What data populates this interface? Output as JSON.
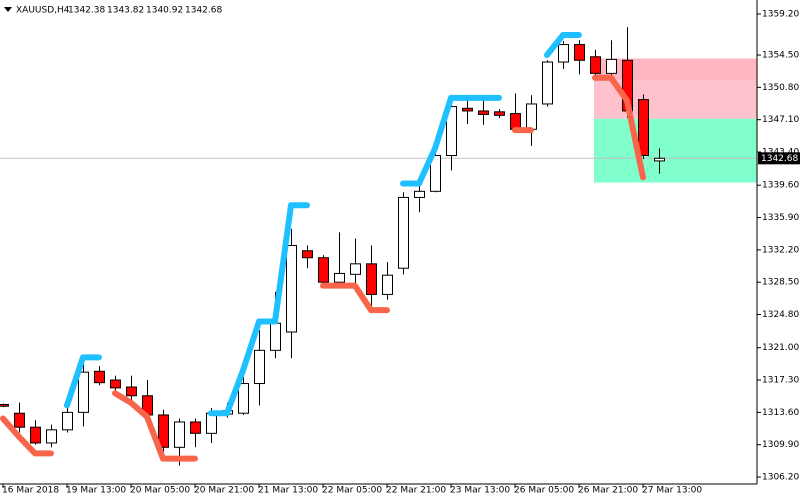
{
  "chart_data": {
    "type": "candlestick",
    "symbol": "XAUUSD,H4",
    "categories": [
      "16 Mar 2018",
      null,
      null,
      null,
      "19 Mar 13:00",
      null,
      null,
      null,
      "20 Mar 05:00",
      null,
      null,
      null,
      "20 Mar 21:00",
      null,
      null,
      null,
      "21 Mar 13:00",
      null,
      null,
      null,
      "22 Mar 05:00",
      null,
      null,
      null,
      "22 Mar 21:00",
      null,
      null,
      null,
      "23 Mar 13:00",
      null,
      null,
      null,
      "26 Mar 05:00",
      null,
      null,
      null,
      "26 Mar 21:00",
      null,
      null,
      null,
      "27 Mar 13:00",
      null
    ],
    "open": [
      1314.5,
      1313.5,
      1311.9,
      1310.1,
      1311.6,
      1313.6,
      1318.3,
      1317.3,
      1316.5,
      1315.5,
      1313.3,
      1309.6,
      1312.5,
      1311.2,
      1313.4,
      1313.5,
      1316.9,
      1320.7,
      1322.8,
      1332.1,
      1331.3,
      1328.5,
      1329.4,
      1330.6,
      1327.1,
      1330.1,
      1338.2,
      1338.9,
      1343.0,
      1348.4,
      1348.1,
      1348.0,
      1347.8,
      1346.0,
      1348.9,
      1353.7,
      1355.7,
      1354.3,
      1352.4,
      1353.9,
      1349.4,
      1342.38
    ],
    "high": [
      1314.6,
      1314.7,
      1312.7,
      1312.2,
      1314.4,
      1319.4,
      1318.9,
      1317.8,
      1317.8,
      1317.3,
      1313.9,
      1312.9,
      1312.9,
      1314.1,
      1314.7,
      1318.1,
      1323.0,
      1327.4,
      1334.6,
      1332.7,
      1331.6,
      1334.2,
      1333.5,
      1332.7,
      1330.8,
      1338.8,
      1340.2,
      1344.2,
      1349.7,
      1349.6,
      1349.3,
      1348.3,
      1350.1,
      1349.9,
      1353.9,
      1356.1,
      1356.2,
      1355.1,
      1356.2,
      1357.7,
      1350.0,
      1343.82
    ],
    "low": [
      1314.2,
      1311.3,
      1309.9,
      1309.6,
      1311.3,
      1312.0,
      1316.7,
      1315.9,
      1314.7,
      1312.9,
      1309.1,
      1307.5,
      1309.6,
      1310.1,
      1313.0,
      1313.3,
      1314.4,
      1319.8,
      1319.8,
      1330.1,
      1328.3,
      1328.2,
      1327.6,
      1325.6,
      1326.5,
      1329.4,
      1336.5,
      1338.8,
      1341.3,
      1346.6,
      1346.5,
      1347.3,
      1345.8,
      1344.1,
      1348.6,
      1352.9,
      1352.3,
      1352.0,
      1352.0,
      1347.3,
      1342.6,
      1340.92
    ],
    "close": [
      1314.3,
      1311.9,
      1310.1,
      1311.6,
      1313.6,
      1318.2,
      1317.0,
      1316.4,
      1315.5,
      1313.3,
      1309.6,
      1312.5,
      1311.2,
      1313.5,
      1313.8,
      1316.9,
      1320.7,
      1323.8,
      1332.7,
      1331.3,
      1328.5,
      1329.5,
      1330.6,
      1327.1,
      1329.3,
      1338.2,
      1338.9,
      1343.0,
      1348.6,
      1348.1,
      1347.7,
      1347.6,
      1346.0,
      1348.9,
      1353.7,
      1355.7,
      1353.9,
      1352.4,
      1354.0,
      1348.1,
      1343.0,
      1342.68
    ],
    "up_color": "#ffffff",
    "down_color": "#ff0000",
    "lines": [
      {
        "color": "#1ec0ff",
        "values": [
          null,
          null,
          null,
          null,
          1314.4,
          1319.9,
          1319.9,
          null,
          null,
          null,
          null,
          null,
          null,
          1313.5,
          1313.5,
          1318.4,
          1324.0,
          1324.0,
          1337.3,
          1337.3,
          null,
          null,
          null,
          null,
          null,
          1339.8,
          1339.8,
          1343.8,
          1349.6,
          1349.6,
          1349.6,
          1349.6,
          null,
          null,
          1354.5,
          1356.8,
          1356.8,
          null,
          null,
          null,
          null,
          null
        ]
      },
      {
        "color": "#f8654a",
        "values": [
          1312.9,
          1310.8,
          1308.9,
          1308.9,
          null,
          null,
          null,
          1315.8,
          1314.7,
          1313.1,
          1308.3,
          1308.3,
          1308.3,
          null,
          null,
          null,
          null,
          null,
          null,
          null,
          1328.1,
          1328.1,
          1328.1,
          1325.3,
          1325.3,
          null,
          null,
          null,
          null,
          null,
          null,
          null,
          1345.9,
          1345.9,
          null,
          null,
          null,
          1351.9,
          1351.9,
          1349.3,
          1340.5,
          null
        ]
      }
    ],
    "zones": [
      {
        "from": 1354.1,
        "to": 1351.6,
        "color": "#ffb6c1",
        "start": 37
      },
      {
        "from": 1351.6,
        "to": 1347.2,
        "color": "#ffc2cc",
        "start": 37
      },
      {
        "from": 1347.2,
        "to": 1339.9,
        "color": "#80ffcc",
        "start": 37
      }
    ],
    "ylim": [
      1305.4,
      1360.8
    ],
    "yticks": [
      {
        "value": 1359.2,
        "label": "1359.20"
      },
      {
        "value": 1354.5,
        "label": "1354.50"
      },
      {
        "value": 1350.8,
        "label": "1350.80"
      },
      {
        "value": 1347.1,
        "label": "1347.10"
      },
      {
        "value": 1343.4,
        "label": "1343.40"
      },
      {
        "value": 1339.6,
        "label": "1339.60"
      },
      {
        "value": 1335.9,
        "label": "1335.90"
      },
      {
        "value": 1332.2,
        "label": "1332.20"
      },
      {
        "value": 1328.5,
        "label": "1328.50"
      },
      {
        "value": 1324.8,
        "label": "1324.80"
      },
      {
        "value": 1321.0,
        "label": "1321.00"
      },
      {
        "value": 1317.3,
        "label": "1317.30"
      },
      {
        "value": 1313.6,
        "label": "1313.60"
      },
      {
        "value": 1309.9,
        "label": "1309.90"
      },
      {
        "value": 1306.2,
        "label": "1306.20"
      }
    ]
  }
}
